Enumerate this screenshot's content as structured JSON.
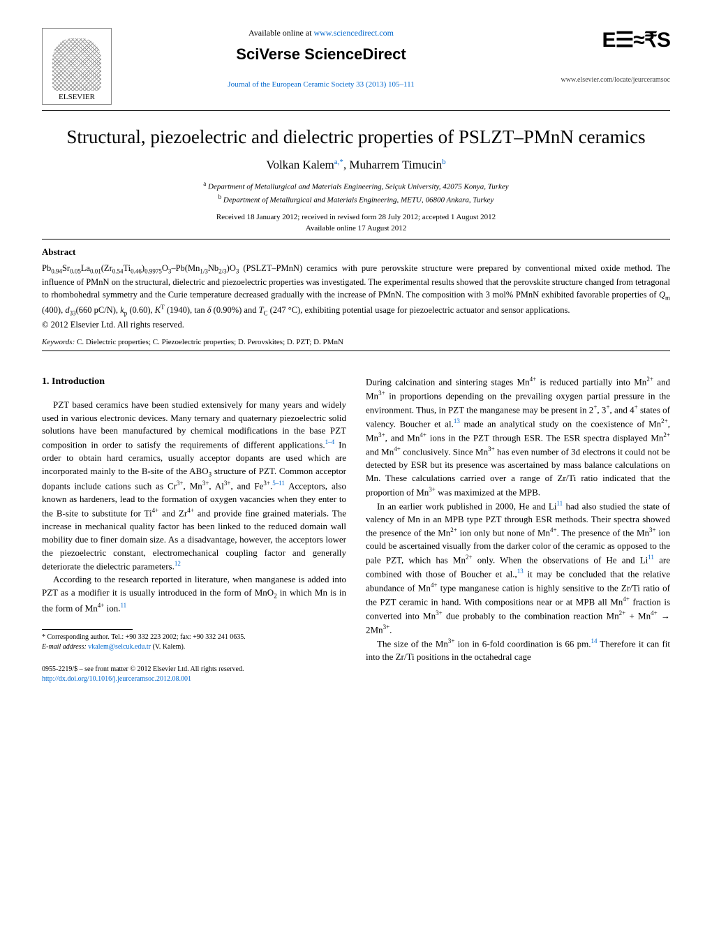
{
  "header": {
    "publisher": "ELSEVIER",
    "available_text": "Available online at ",
    "available_url": "www.sciencedirect.com",
    "platform": "SciVerse ScienceDirect",
    "journal_citation": "Journal of the European Ceramic Society 33 (2013) 105–111",
    "journal_logo": "E☰≈₹S",
    "locate_url": "www.elsevier.com/locate/jeurceramsoc"
  },
  "title": "Structural, piezoelectric and dielectric properties of PSLZT–PMnN ceramics",
  "authors_html": "Volkan Kalem",
  "author1_sup": "a,*",
  "author_sep": ", Muharrem Timucin",
  "author2_sup": "b",
  "affiliations": {
    "a": "Department of Metallurgical and Materials Engineering, Selçuk University, 42075 Konya, Turkey",
    "b": "Department of Metallurgical and Materials Engineering, METU, 06800 Ankara, Turkey"
  },
  "dates": {
    "received": "Received 18 January 2012; received in revised form 28 July 2012; accepted 1 August 2012",
    "online": "Available online 17 August 2012"
  },
  "abstract": {
    "heading": "Abstract",
    "body_parts": [
      "Pb",
      "0.94",
      "Sr",
      "0.05",
      "La",
      "0.01",
      "(Zr",
      "0.54",
      "Ti",
      "0.46",
      ")",
      "0.9975",
      "O",
      "3",
      "–Pb(Mn",
      "1/3",
      "Nb",
      "2/3",
      ")O",
      "3",
      " (PSLZT–PMnN) ceramics with pure perovskite structure were prepared by conventional mixed oxide method. The influence of PMnN on the structural, dielectric and piezoelectric properties was investigated. The experimental results showed that the perovskite structure changed from tetragonal to rhombohedral symmetry and the Curie temperature decreased gradually with the increase of PMnN. The composition with 3 mol% PMnN exhibited favorable properties of ",
      "Q",
      "m",
      " (400), ",
      "d",
      "33",
      "(660 pC/N), ",
      "k",
      "p",
      " (0.60), ",
      "K",
      "T",
      " (1940), tan ",
      "δ",
      " (0.90%) and ",
      "T",
      "C",
      " (247 °C), exhibiting potential usage for piezoelectric actuator and sensor applications."
    ],
    "copyright": "© 2012 Elsevier Ltd. All rights reserved."
  },
  "keywords_label": "Keywords:",
  "keywords": "C. Dielectric properties; C. Piezoelectric properties; D. Perovskites; D. PZT; D. PMnN",
  "introduction": {
    "heading": "1. Introduction",
    "left_paras": [
      {
        "prefix": "PZT based ceramics have been studied extensively for many years and widely used in various electronic devices. Many ternary and quaternary piezoelectric solid solutions have been manufactured by chemical modifications in the base PZT composition in order to satisfy the requirements of different applications.",
        "ref1": "1–4",
        "mid1": " In order to obtain hard ceramics, usually acceptor dopants are used which are incorporated mainly to the B-site of the ABO",
        "sub1": "3",
        "mid2": " structure of PZT. Common acceptor dopants include cations such as Cr",
        "sup1": "3+",
        "mid3": ", Mn",
        "sup2": "3+",
        "mid4": ", Al",
        "sup3": "3+",
        "mid5": ", and Fe",
        "sup4": "3+",
        "mid6": ".",
        "ref2": "5–11",
        "mid7": " Acceptors, also known as hardeners, lead to the formation of oxygen vacancies when they enter to the B-site to substitute for Ti",
        "sup5": "4+",
        "mid8": " and Zr",
        "sup6": "4+",
        "mid9": " and provide fine grained materials. The increase in mechanical quality factor has been linked to the reduced domain wall mobility due to finer domain size. As a disadvantage, however, the acceptors lower the piezoelectric constant, electromechanical coupling factor and generally deteriorate the dielectric parameters.",
        "ref3": "12"
      },
      {
        "prefix": "According to the research reported in literature, when manganese is added into PZT as a modifier it is usually introduced in the form of MnO",
        "sub1": "2",
        "mid1": " in which Mn is in the form of Mn",
        "sup1": "4+",
        "mid2": " ion.",
        "ref1": "11"
      }
    ],
    "right_paras": [
      {
        "prefix": "During calcination and sintering stages Mn",
        "sup1": "4+",
        "mid1": " is reduced partially into Mn",
        "sup2": "2+",
        "mid2": " and Mn",
        "sup3": "3+",
        "mid3": " in proportions depending on the prevailing oxygen partial pressure in the environment. Thus, in PZT the manganese may be present in 2",
        "sup4": "+",
        "mid4": ", 3",
        "sup5": "+",
        "mid5": ", and 4",
        "sup6": "+",
        "mid6": " states of valency. Boucher et al.",
        "ref1": "13",
        "mid7": " made an analytical study on the coexistence of Mn",
        "sup7": "2+",
        "mid8": ", Mn",
        "sup8": "3+",
        "mid9": ", and Mn",
        "sup9": "4+",
        "mid10": " ions in the PZT through ESR. The ESR spectra displayed Mn",
        "sup10": "2+",
        "mid11": " and Mn",
        "sup11": "4+",
        "mid12": " conclusively. Since Mn",
        "sup12": "3+",
        "mid13": " has even number of 3d electrons it could not be detected by ESR but its presence was ascertained by mass balance calculations on Mn. These calculations carried over a range of Zr/Ti ratio indicated that the proportion of Mn",
        "sup13": "3+",
        "mid14": " was maximized at the MPB."
      },
      {
        "prefix": "In an earlier work published in 2000, He and Li",
        "ref1": "11",
        "mid1": " had also studied the state of valency of Mn in an MPB type PZT through ESR methods. Their spectra showed the presence of the Mn",
        "sup1": "2+",
        "mid2": " ion only but none of Mn",
        "sup2": "4+",
        "mid3": ". The presence of the Mn",
        "sup3": "3+",
        "mid4": " ion could be ascertained visually from the darker color of the ceramic as opposed to the pale PZT, which has Mn",
        "sup4": "2+",
        "mid5": " only. When the observations of He and Li",
        "ref2": "11",
        "mid6": " are combined with those of Boucher et al.,",
        "ref3": "13",
        "mid7": " it may be concluded that the relative abundance of Mn",
        "sup5": "4+",
        "mid8": " type manganese cation is highly sensitive to the Zr/Ti ratio of the PZT ceramic in hand. With compositions near or at MPB all Mn",
        "sup6": "4+",
        "mid9": " fraction is converted into Mn",
        "sup7": "3+",
        "mid10": " due probably to the combination reaction Mn",
        "sup8": "2+",
        "mid11": " + Mn",
        "sup9": "4+",
        "mid12": " → 2Mn",
        "sup10": "3+",
        "mid13": "."
      },
      {
        "prefix": "The size of the Mn",
        "sup1": "3+",
        "mid1": " ion in 6-fold coordination is 66 pm.",
        "ref1": "14",
        "mid2": " Therefore it can fit into the Zr/Ti positions in the octahedral cage"
      }
    ]
  },
  "footnote": {
    "corr": "* Corresponding author. Tel.: +90 332 223 2002; fax: +90 332 241 0635.",
    "email_label": "E-mail address: ",
    "email": "vkalem@selcuk.edu.tr",
    "email_suffix": " (V. Kalem)."
  },
  "footer": {
    "line1": "0955-2219/$ – see front matter © 2012 Elsevier Ltd. All rights reserved.",
    "doi": "http://dx.doi.org/10.1016/j.jeurceramsoc.2012.08.001"
  },
  "colors": {
    "link": "#0066cc",
    "text": "#000000",
    "bg": "#ffffff"
  }
}
